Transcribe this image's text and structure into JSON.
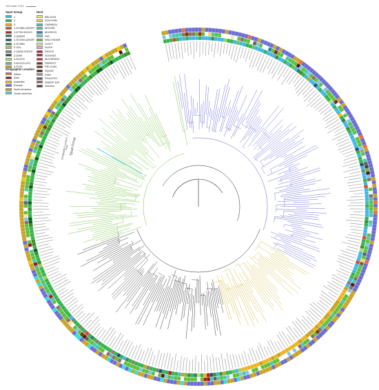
{
  "scale": {
    "label": "Tree scale: 0.001"
  },
  "legend_spaa": {
    "title": "SpaA Group",
    "items": [
      {
        "label": "1",
        "color": "#3fb6e6"
      },
      {
        "label": "2",
        "color": "#34b34a"
      },
      {
        "label": "3",
        "color": "#f2b21b"
      },
      {
        "label": "1-D198A-Q302H",
        "color": "#d64a2b"
      },
      {
        "label": "1-K75V-N101S",
        "color": "#b11f24"
      },
      {
        "label": "1-Q302R",
        "color": "#2e7d5b"
      },
      {
        "label": "1-S134N-Q302R",
        "color": "#1f4e79"
      },
      {
        "label": "2-D198A",
        "color": "#3a8f2f"
      },
      {
        "label": "2-I37L",
        "color": "#9bd15a"
      },
      {
        "label": "2-Q64A-N101S",
        "color": "#7f7f7f"
      },
      {
        "label": "2-D59I",
        "color": "#0a5a1a"
      },
      {
        "label": "2-N101S",
        "color": "#a6e07a"
      },
      {
        "label": "2-N101S-I37L",
        "color": "#6bbf59"
      },
      {
        "label": "3-P23L",
        "color": "#c7a21c"
      }
    ]
  },
  "legend_host": {
    "title": "Host",
    "items": [
      {
        "label": "BELUGA",
        "color": "#f0e68c"
      },
      {
        "label": "DOLPHIN",
        "color": "#f6d55c"
      },
      {
        "label": "CARIBOU",
        "color": "#5ab4ac"
      },
      {
        "label": "MOOSE",
        "color": "#48c9b0"
      },
      {
        "label": "MUSKOX",
        "color": "#2c7bb6"
      },
      {
        "label": "PIG",
        "color": "#7ec8e3"
      },
      {
        "label": "WILD BOAR",
        "color": "#5bc236"
      },
      {
        "label": "COOT",
        "color": "#f3e5ab"
      },
      {
        "label": "DUCK",
        "color": "#f4a6b8"
      },
      {
        "label": "EAGLE",
        "color": "#c2185b"
      },
      {
        "label": "GOSHAT",
        "color": "#b71c1c"
      },
      {
        "label": "MOORHEN",
        "color": "#d32f2f"
      },
      {
        "label": "PARROT",
        "color": "#8e1b1b"
      },
      {
        "label": "PELICAN",
        "color": "#7a3b00"
      },
      {
        "label": "SQUID",
        "color": "#4a1a1a"
      },
      {
        "label": "FISH",
        "color": "#9e9e9e"
      },
      {
        "label": "POULTRY",
        "color": "#616161"
      },
      {
        "label": "SHEEP DIP",
        "color": "#8d6e63"
      },
      {
        "label": "Vaccine",
        "color": "#424242"
      }
    ]
  },
  "legend_geo": {
    "title": "Geographic Location",
    "items": [
      {
        "label": "Africa",
        "color": "#e8703a"
      },
      {
        "label": "Asia",
        "color": "#8b1a1a"
      },
      {
        "label": "Australia",
        "color": "#f2c500"
      },
      {
        "label": "Europe",
        "color": "#6b6bd6"
      },
      {
        "label": "North America",
        "color": "#c9a227"
      },
      {
        "label": "South America",
        "color": "#2fe0e0"
      }
    ]
  },
  "ring_labels": {
    "geo": "Geographic Location",
    "host": "Host",
    "spaa": "SpaA Group"
  },
  "colors": {
    "branch_blue": "#5b5bd6",
    "branch_green": "#6fbf3a",
    "branch_yellow": "#c9b12a",
    "branch_black": "#222222",
    "long_branch": "#36c6d6",
    "leaf_text": "#8a8a8a"
  }
}
